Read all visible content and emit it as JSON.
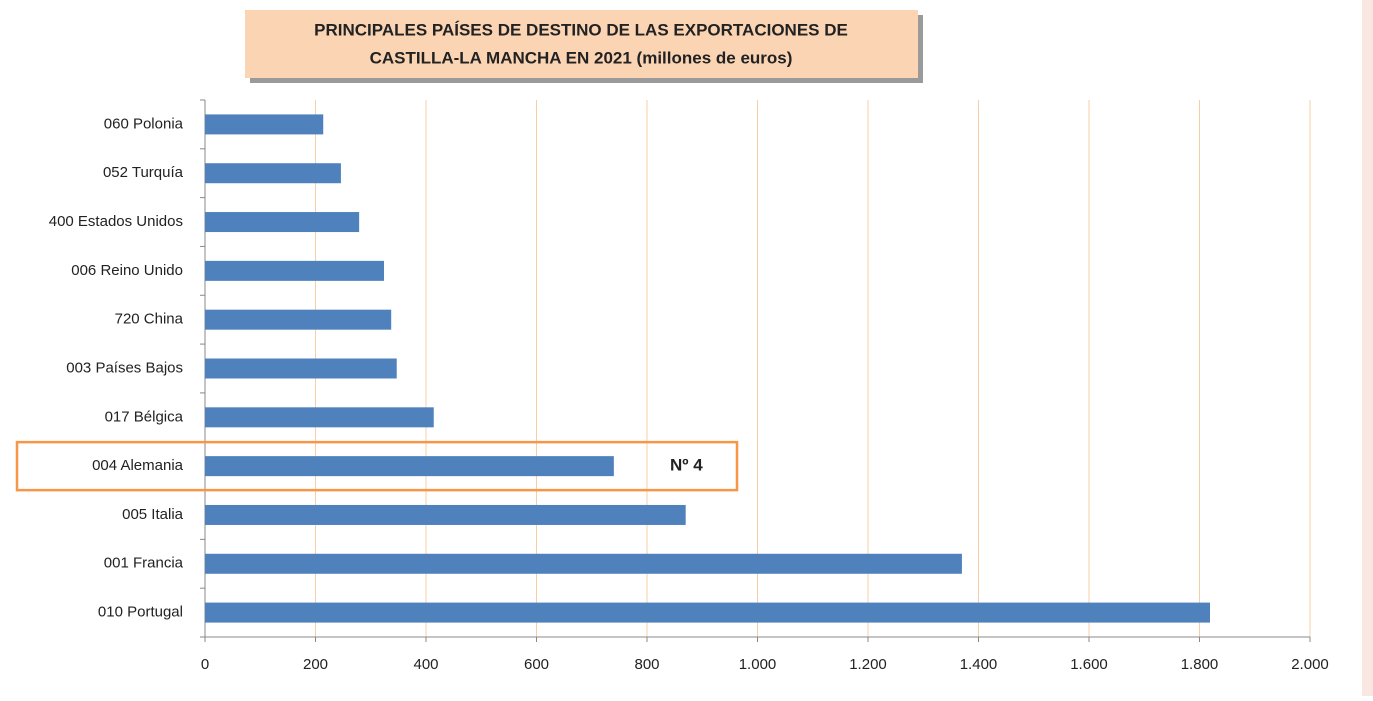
{
  "chart_data": {
    "type": "bar",
    "orientation": "horizontal",
    "title": [
      "PRINCIPALES PAÍSES DE DESTINO DE LAS EXPORTACIONES DE",
      "CASTILLA-LA MANCHA EN 2021 (millones de euros)"
    ],
    "categories": [
      "060 Polonia",
      "052 Turquía",
      "400 Estados Unidos",
      "006 Reino Unido",
      "720 China",
      "003 Países Bajos",
      "017 Bélgica",
      "004 Alemania",
      "005 Italia",
      "001 Francia",
      "010 Portugal"
    ],
    "values": [
      214,
      246,
      279,
      324,
      337,
      347,
      414,
      740,
      870,
      1370,
      1819
    ],
    "color": "#4f81bd",
    "xlim": [
      0,
      2000
    ],
    "xticks": [
      0,
      200,
      400,
      600,
      800,
      {
        "value": 1000,
        "label": "1.000"
      },
      {
        "value": 1200,
        "label": "1.200"
      },
      {
        "value": 1400,
        "label": "1.400"
      },
      {
        "value": 1600,
        "label": "1.600"
      },
      {
        "value": 1800,
        "label": "1.800"
      },
      {
        "value": 2000,
        "label": "2.000"
      }
    ],
    "grid": true,
    "annotation": "Nº 4"
  }
}
